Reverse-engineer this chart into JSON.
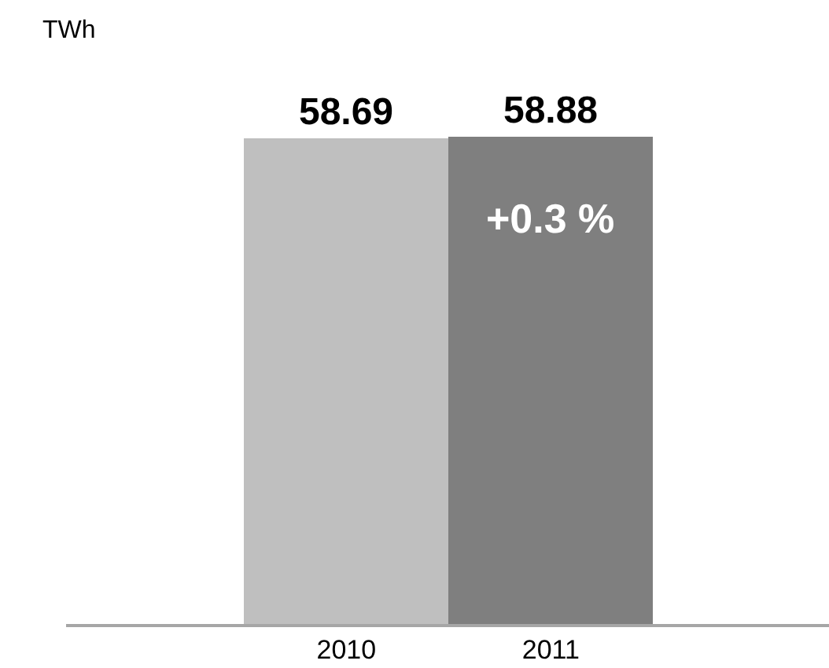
{
  "chart_data": {
    "type": "bar",
    "categories": [
      "2010",
      "2011"
    ],
    "values": [
      58.69,
      58.88
    ],
    "colors": [
      "#bfbfbf",
      "#7f7f7f"
    ],
    "data_labels": true,
    "annotations": [
      "TWh",
      "+0.3 %"
    ]
  }
}
